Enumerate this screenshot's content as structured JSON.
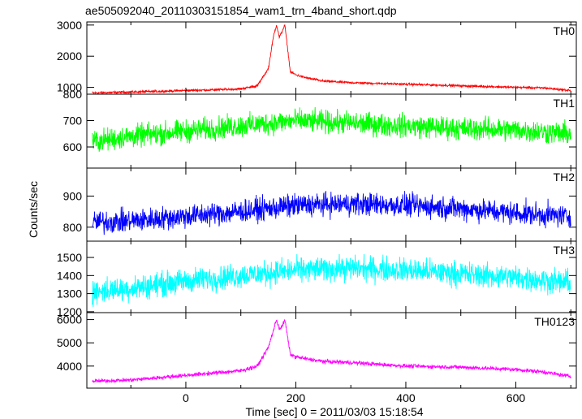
{
  "chart_data": {
    "type": "line",
    "title": "ae505092040_20110303151854_wam1_trn_4band_short.qdp",
    "xlabel": "Time [sec] 0 = 2011/03/03 15:18:54",
    "ylabel": "Counts/sec",
    "xlim": [
      -180,
      710
    ],
    "x_ticks": [
      0,
      200,
      400,
      600
    ],
    "x_tick_labels": [
      "0",
      "200",
      "400",
      "600"
    ],
    "grid": false,
    "panels": [
      {
        "name": "TH0",
        "color": "#ff0000",
        "ylim": [
          780,
          3100
        ],
        "y_ticks": [
          1000,
          2000,
          3000
        ],
        "y_tick_labels": [
          "1000",
          "2000",
          "3000"
        ],
        "x": [
          -170,
          -100,
          -50,
          0,
          50,
          100,
          130,
          150,
          160,
          165,
          170,
          175,
          180,
          190,
          200,
          220,
          250,
          300,
          400,
          500,
          600,
          650,
          700
        ],
        "y": [
          820,
          850,
          870,
          900,
          920,
          950,
          1050,
          1600,
          2700,
          3000,
          2600,
          2800,
          3000,
          1500,
          1400,
          1300,
          1200,
          1150,
          1100,
          1050,
          1000,
          980,
          900
        ],
        "noise": 30
      },
      {
        "name": "TH1",
        "color": "#00ff00",
        "ylim": [
          520,
          800
        ],
        "y_ticks": [
          600,
          700,
          800
        ],
        "y_tick_labels": [
          "600",
          "700",
          "800"
        ],
        "x": [
          -170,
          -100,
          0,
          100,
          200,
          300,
          400,
          500,
          600,
          700
        ],
        "y": [
          620,
          640,
          660,
          680,
          700,
          690,
          680,
          670,
          665,
          650
        ],
        "noise": 35
      },
      {
        "name": "TH2",
        "color": "#0000ff",
        "ylim": [
          755,
          990
        ],
        "y_ticks": [
          800,
          900
        ],
        "y_tick_labels": [
          "800",
          "900"
        ],
        "x": [
          -170,
          -100,
          0,
          100,
          200,
          300,
          400,
          500,
          600,
          700
        ],
        "y": [
          815,
          820,
          835,
          850,
          870,
          875,
          870,
          860,
          845,
          835
        ],
        "noise": 30
      },
      {
        "name": "TH3",
        "color": "#00ffff",
        "ylim": [
          1195,
          1590
        ],
        "y_ticks": [
          1200,
          1300,
          1400,
          1500
        ],
        "y_tick_labels": [
          "1200",
          "1300",
          "1400",
          "1500"
        ],
        "x": [
          -170,
          -100,
          0,
          100,
          200,
          300,
          400,
          500,
          600,
          700
        ],
        "y": [
          1310,
          1330,
          1370,
          1400,
          1430,
          1440,
          1430,
          1410,
          1390,
          1360
        ],
        "noise": 55
      },
      {
        "name": "TH0123",
        "color": "#ff00ff",
        "ylim": [
          3050,
          6300
        ],
        "y_ticks": [
          4000,
          5000,
          6000
        ],
        "y_tick_labels": [
          "4000",
          "5000",
          "6000"
        ],
        "x": [
          -170,
          -100,
          -50,
          0,
          50,
          100,
          130,
          150,
          160,
          165,
          170,
          175,
          180,
          190,
          200,
          220,
          250,
          300,
          400,
          500,
          600,
          650,
          700
        ],
        "y": [
          3350,
          3400,
          3500,
          3600,
          3700,
          3800,
          4000,
          4800,
          5600,
          6000,
          5600,
          5700,
          6000,
          4500,
          4400,
          4300,
          4200,
          4150,
          4000,
          3950,
          3850,
          3750,
          3550
        ],
        "noise": 70
      }
    ]
  }
}
